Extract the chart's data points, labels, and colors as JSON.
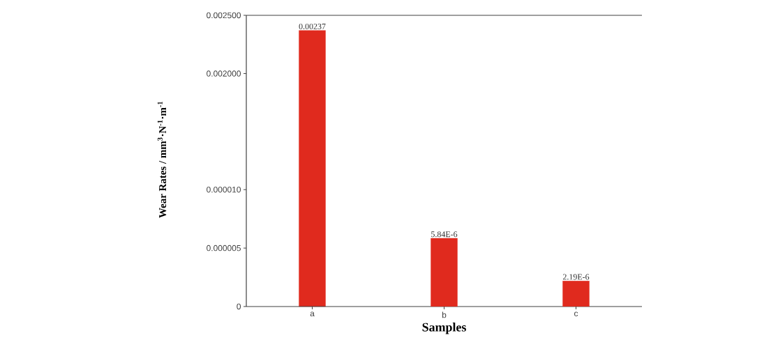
{
  "chart_data": [
    {
      "type": "bar",
      "values": [
        0.00237,
        null,
        null
      ],
      "color": "#e02a1e",
      "value_labels": [
        "0.00237",
        null,
        null
      ],
      "ylim": [
        0.001495,
        0.0025
      ],
      "yticks": [
        {
          "value": 0.002,
          "label": "0.002000"
        },
        {
          "value": 0.0025,
          "label": "0.002500"
        }
      ],
      "tick_labels": "y"
    },
    {
      "type": "bar",
      "categories": [
        "a",
        "b",
        "c"
      ],
      "values": [
        null,
        5.84e-06,
        2.19e-06
      ],
      "color": "#e02a1e",
      "value_labels": [
        null,
        "5.84E-6",
        "2.19E-6"
      ],
      "ylim": [
        0,
        1.49e-05
      ],
      "yticks": [
        0,
        {
          "value": 5e-06,
          "label": "0.000005"
        },
        {
          "value": 1e-05,
          "label": "0.000010"
        }
      ],
      "xlabel": "Samples",
      "ylabel": "Wear Rates / mm$^{3}$·N$^{-1}$·m$^{-1}$"
    }
  ]
}
